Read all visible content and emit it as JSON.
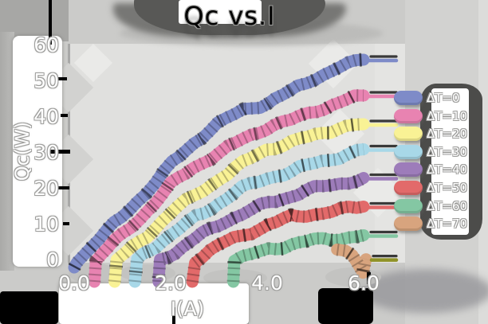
{
  "title": "Qc vs.I",
  "axes": {
    "x_label": "I(A)",
    "y_label": "Qc(W)",
    "x_ticks": [
      "0.0",
      "2.0",
      "4.0",
      "6.0"
    ],
    "y_ticks": [
      "0",
      "10",
      "20",
      "30",
      "40",
      "50",
      "60"
    ]
  },
  "chart_data": {
    "type": "line",
    "title": "Qc vs.I",
    "xlabel": "I(A)",
    "ylabel": "Qc(W)",
    "xlim": [
      0,
      6.7
    ],
    "ylim": [
      0,
      60
    ],
    "grid": false,
    "legend_position": "right",
    "series": [
      {
        "name": "ΔT=0",
        "color": "#7e8bc8",
        "points": [
          [
            0,
            0
          ],
          [
            0.5,
            6
          ],
          [
            1,
            12
          ],
          [
            1.5,
            19
          ],
          [
            2,
            27
          ],
          [
            2.5,
            33
          ],
          [
            3,
            38
          ],
          [
            3.5,
            42
          ],
          [
            4,
            44
          ],
          [
            4.5,
            47
          ],
          [
            5,
            51
          ],
          [
            5.5,
            54
          ],
          [
            6,
            56
          ]
        ]
      },
      {
        "name": "ΔT=10",
        "color": "#e883b1",
        "points": [
          [
            0.42,
            0
          ],
          [
            1,
            7
          ],
          [
            1.5,
            14
          ],
          [
            2,
            21
          ],
          [
            2.5,
            26
          ],
          [
            3,
            30
          ],
          [
            3.5,
            34
          ],
          [
            4,
            37
          ],
          [
            4.5,
            39
          ],
          [
            5,
            42
          ],
          [
            5.5,
            44
          ],
          [
            6,
            46
          ]
        ]
      },
      {
        "name": "ΔT=20",
        "color": "#f9f295",
        "points": [
          [
            0.84,
            0
          ],
          [
            1.5,
            7
          ],
          [
            2,
            13
          ],
          [
            2.5,
            18
          ],
          [
            3,
            23
          ],
          [
            3.5,
            27
          ],
          [
            4,
            31
          ],
          [
            4.5,
            33
          ],
          [
            5,
            35
          ],
          [
            5.5,
            37
          ],
          [
            6,
            38
          ]
        ]
      },
      {
        "name": "ΔT=30",
        "color": "#a8d8e8",
        "points": [
          [
            1.26,
            0
          ],
          [
            2,
            7
          ],
          [
            2.5,
            12
          ],
          [
            3,
            16
          ],
          [
            3.5,
            20
          ],
          [
            4,
            23
          ],
          [
            4.5,
            25
          ],
          [
            5,
            27
          ],
          [
            5.5,
            29
          ],
          [
            6,
            31
          ]
        ]
      },
      {
        "name": "ΔT=40",
        "color": "#9d7cba",
        "points": [
          [
            1.75,
            0
          ],
          [
            2.5,
            6
          ],
          [
            3,
            10
          ],
          [
            3.5,
            13
          ],
          [
            4,
            16
          ],
          [
            4.5,
            18
          ],
          [
            5,
            20
          ],
          [
            5.5,
            21.5
          ],
          [
            6,
            23
          ]
        ]
      },
      {
        "name": "ΔT=50",
        "color": "#e26a6a",
        "points": [
          [
            2.45,
            0
          ],
          [
            3,
            4
          ],
          [
            3.5,
            7
          ],
          [
            4,
            10
          ],
          [
            4.5,
            12
          ],
          [
            5,
            13
          ],
          [
            5.5,
            14
          ],
          [
            6,
            15
          ]
        ]
      },
      {
        "name": "ΔT=60",
        "color": "#84c7a3",
        "points": [
          [
            3.3,
            0
          ],
          [
            4,
            3
          ],
          [
            4.5,
            4.5
          ],
          [
            5,
            5.5
          ],
          [
            5.5,
            6.3
          ],
          [
            6,
            7
          ]
        ]
      },
      {
        "name": "ΔT=70",
        "color": "#d8a47e",
        "tail_color": "#8f9226",
        "points": [
          [
            5.45,
            3
          ],
          [
            5.75,
            1.2
          ],
          [
            6.05,
            0.3
          ]
        ]
      }
    ]
  }
}
